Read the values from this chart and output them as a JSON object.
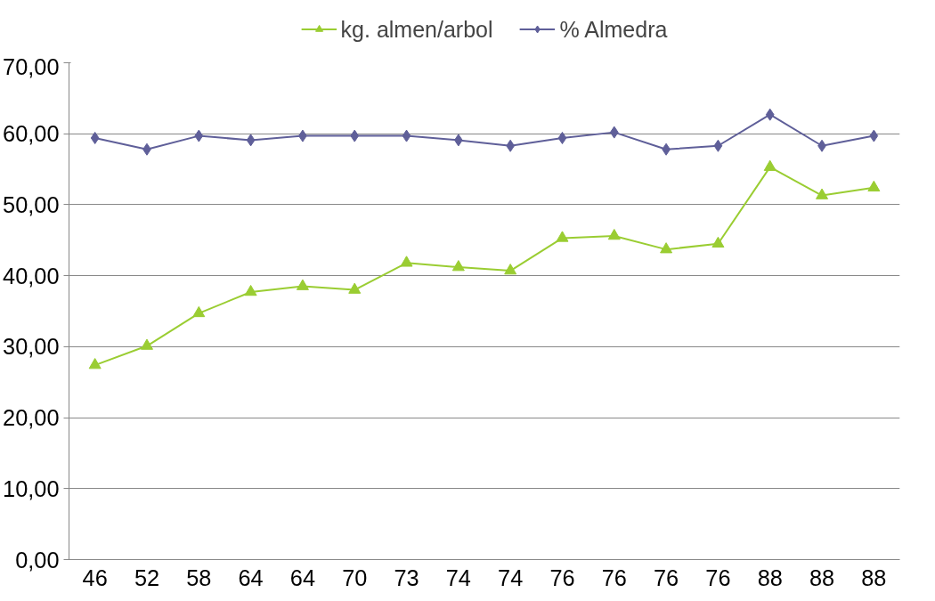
{
  "chart_data": {
    "type": "line",
    "categories": [
      "46",
      "52",
      "58",
      "64",
      "64",
      "70",
      "73",
      "74",
      "74",
      "76",
      "76",
      "76",
      "76",
      "88",
      "88",
      "88"
    ],
    "series": [
      {
        "name": "kg. almen/arbol",
        "color": "#9acd32",
        "marker": "triangle",
        "values": [
          27.4,
          30.1,
          34.7,
          37.7,
          38.5,
          38.0,
          41.8,
          41.2,
          40.7,
          45.3,
          45.6,
          43.7,
          44.5,
          55.3,
          51.3,
          52.4
        ]
      },
      {
        "name": "% Almedra",
        "color": "#5f5f99",
        "marker": "diamond",
        "values": [
          59.4,
          57.8,
          59.7,
          59.1,
          59.7,
          59.7,
          59.7,
          59.1,
          58.3,
          59.4,
          60.2,
          57.8,
          58.3,
          62.7,
          58.3,
          59.7
        ]
      }
    ],
    "ylim": [
      0,
      70
    ],
    "yticks": [
      {
        "value": 0,
        "label": "0,00"
      },
      {
        "value": 10,
        "label": "10,00"
      },
      {
        "value": 20,
        "label": "20,00"
      },
      {
        "value": 30,
        "label": "30,00"
      },
      {
        "value": 40,
        "label": "40,00"
      },
      {
        "value": 50,
        "label": "50,00"
      },
      {
        "value": 60,
        "label": "60,00"
      },
      {
        "value": 70,
        "label": "70,00"
      }
    ],
    "grid": "y",
    "legend": "top",
    "line_style": "solid"
  }
}
